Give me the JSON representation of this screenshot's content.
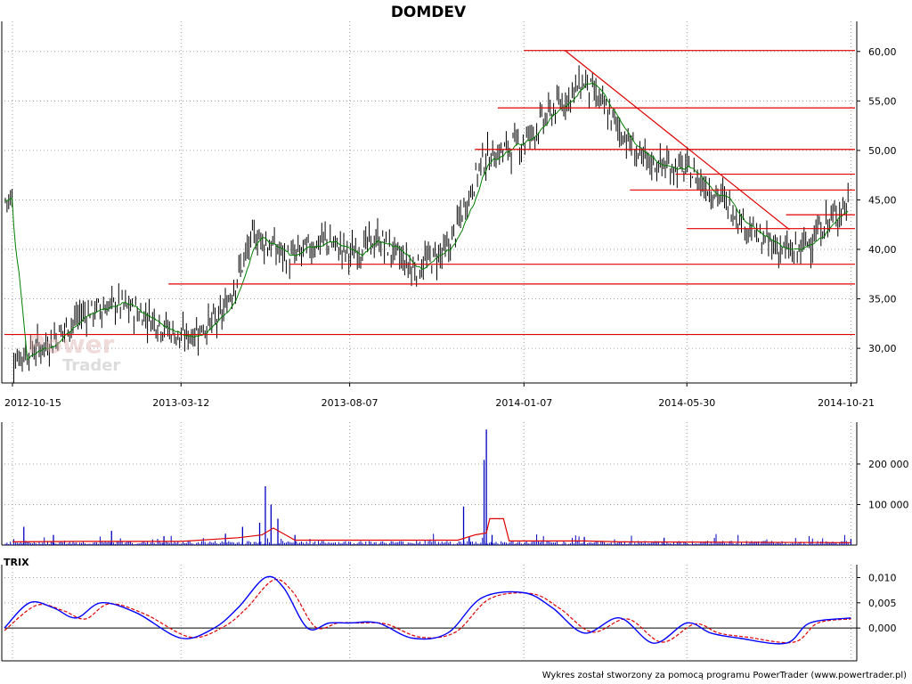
{
  "watermark": {
    "line1": "Power",
    "line2": "Trader"
  },
  "footer": "Wykres został stworzony za pomocą programu PowerTrader (www.powertrader.pl)",
  "colors": {
    "candle": "#000000",
    "sma": "#008000",
    "support": "#e00000",
    "volume": "#0000c0",
    "vol_avg": "#e00000",
    "trix": "#0000ff",
    "trix_signal": "#e00000",
    "grid": "#a0a0a0"
  },
  "chart_data": [
    {
      "type": "ohlc",
      "title": "DOMDEV",
      "x_labels": [
        "2012-10-15",
        "2013-03-12",
        "2013-08-07",
        "2014-01-07",
        "2014-05-30",
        "2014-10-21"
      ],
      "y_ticks": [
        "30,00",
        "35,00",
        "40,00",
        "45,00",
        "50,00",
        "55,00",
        "60,00"
      ],
      "ylim": [
        26.5,
        62.5
      ],
      "grid": true,
      "close_path": [
        [
          "2012-10-15",
          29.0
        ],
        [
          "2012-11-15",
          30.5
        ],
        [
          "2012-12-15",
          33.5
        ],
        [
          "2013-01-15",
          34.5
        ],
        [
          "2013-02-15",
          33.0
        ],
        [
          "2013-03-12",
          31.0
        ],
        [
          "2013-04-15",
          33.0
        ],
        [
          "2013-05-15",
          41.5
        ],
        [
          "2013-06-15",
          39.0
        ],
        [
          "2013-07-15",
          41.0
        ],
        [
          "2013-08-07",
          39.5
        ],
        [
          "2013-09-01",
          41.0
        ],
        [
          "2013-10-01",
          38.0
        ],
        [
          "2013-11-01",
          40.0
        ],
        [
          "2013-12-01",
          49.0
        ],
        [
          "2014-01-07",
          51.0
        ],
        [
          "2014-02-01",
          54.0
        ],
        [
          "2014-03-01",
          57.0
        ],
        [
          "2014-04-01",
          52.0
        ],
        [
          "2014-04-20",
          49.0
        ],
        [
          "2014-05-30",
          48.0
        ],
        [
          "2014-07-01",
          45.0
        ],
        [
          "2014-08-01",
          41.0
        ],
        [
          "2014-09-01",
          39.5
        ],
        [
          "2014-10-21",
          45.0
        ]
      ],
      "horizontal_lines": [
        {
          "level": 60.1,
          "from": "2014-01-07"
        },
        {
          "level": 54.3,
          "from": "2013-12-15"
        },
        {
          "level": 50.1,
          "from": "2013-11-25"
        },
        {
          "level": 47.6,
          "from": "2014-05-20"
        },
        {
          "level": 46.0,
          "from": "2014-04-10"
        },
        {
          "level": 43.5,
          "from": "2014-08-25"
        },
        {
          "level": 42.1,
          "from": "2014-05-30"
        },
        {
          "level": 38.5,
          "from": "2013-06-15"
        },
        {
          "level": 36.5,
          "from": "2013-03-01"
        },
        {
          "level": 31.4,
          "from": "2012-10-08"
        }
      ],
      "trend_line": [
        [
          "2014-02-12",
          60.1
        ],
        [
          "2014-08-28",
          42.0
        ]
      ]
    },
    {
      "type": "bar",
      "title": "",
      "y_ticks": [
        "100 000",
        "200 000"
      ],
      "ylim": [
        0,
        290000
      ],
      "grid": true,
      "spikes": [
        [
          "2012-10-25",
          45000
        ],
        [
          "2012-11-20",
          25000
        ],
        [
          "2013-01-10",
          35000
        ],
        [
          "2013-02-25",
          22000
        ],
        [
          "2013-04-20",
          28000
        ],
        [
          "2013-05-05",
          45000
        ],
        [
          "2013-05-20",
          55000
        ],
        [
          "2013-05-25",
          145000
        ],
        [
          "2013-05-30",
          100000
        ],
        [
          "2013-06-05",
          65000
        ],
        [
          "2013-06-20",
          25000
        ],
        [
          "2013-11-15",
          95000
        ],
        [
          "2013-11-20",
          20000
        ],
        [
          "2013-12-03",
          210000
        ],
        [
          "2013-12-05",
          285000
        ],
        [
          "2013-12-10",
          25000
        ],
        [
          "2014-03-01",
          20000
        ],
        [
          "2014-05-10",
          18000
        ],
        [
          "2014-10-21",
          15000
        ]
      ],
      "avg_path": [
        [
          "2012-10-15",
          8000
        ],
        [
          "2012-12-15",
          9000
        ],
        [
          "2013-03-12",
          9000
        ],
        [
          "2013-05-01",
          18000
        ],
        [
          "2013-05-22",
          25000
        ],
        [
          "2013-06-01",
          42000
        ],
        [
          "2013-06-20",
          12000
        ],
        [
          "2013-11-10",
          12000
        ],
        [
          "2013-11-25",
          25000
        ],
        [
          "2013-12-05",
          30000
        ],
        [
          "2013-12-08",
          65000
        ],
        [
          "2013-12-20",
          65000
        ],
        [
          "2013-12-25",
          10000
        ],
        [
          "2014-03-01",
          10000
        ],
        [
          "2014-04-01",
          8000
        ],
        [
          "2014-10-21",
          6000
        ]
      ]
    },
    {
      "type": "line",
      "title": "TRIX",
      "y_ticks": [
        "0,000",
        "0,005",
        "0,010"
      ],
      "ylim": [
        -0.0065,
        0.0115
      ],
      "grid": true,
      "series": [
        {
          "values": [
            [
              "2012-10-08",
              0.0
            ],
            [
              "2012-10-30",
              0.005
            ],
            [
              "2012-11-20",
              0.004
            ],
            [
              "2012-12-10",
              0.002
            ],
            [
              "2013-01-01",
              0.005
            ],
            [
              "2013-02-01",
              0.003
            ],
            [
              "2013-03-12",
              -0.002
            ],
            [
              "2013-04-10",
              0.0
            ],
            [
              "2013-05-01",
              0.004
            ],
            [
              "2013-05-25",
              0.01
            ],
            [
              "2013-06-10",
              0.008
            ],
            [
              "2013-07-01",
              0.0
            ],
            [
              "2013-07-20",
              0.001
            ],
            [
              "2013-08-07",
              0.001
            ],
            [
              "2013-09-01",
              0.001
            ],
            [
              "2013-10-01",
              -0.002
            ],
            [
              "2013-11-01",
              -0.001
            ],
            [
              "2013-12-01",
              0.006
            ],
            [
              "2014-01-07",
              0.007
            ],
            [
              "2014-02-01",
              0.004
            ],
            [
              "2014-03-01",
              -0.001
            ],
            [
              "2014-04-01",
              0.002
            ],
            [
              "2014-05-01",
              -0.003
            ],
            [
              "2014-05-30",
              0.001
            ],
            [
              "2014-06-20",
              -0.001
            ],
            [
              "2014-07-15",
              -0.002
            ],
            [
              "2014-08-25",
              -0.003
            ],
            [
              "2014-09-15",
              0.001
            ],
            [
              "2014-10-21",
              0.002
            ]
          ]
        },
        {
          "values": [
            [
              "2012-10-08",
              -0.0005
            ],
            [
              "2012-11-05",
              0.0045
            ],
            [
              "2012-11-28",
              0.0035
            ],
            [
              "2012-12-18",
              0.0018
            ],
            [
              "2013-01-08",
              0.0048
            ],
            [
              "2013-02-08",
              0.0028
            ],
            [
              "2013-03-20",
              -0.0018
            ],
            [
              "2013-04-18",
              0.0002
            ],
            [
              "2013-05-08",
              0.0038
            ],
            [
              "2013-06-01",
              0.0095
            ],
            [
              "2013-06-18",
              0.0072
            ],
            [
              "2013-07-08",
              0.0002
            ],
            [
              "2013-07-28",
              0.001
            ],
            [
              "2013-08-15",
              0.001
            ],
            [
              "2013-09-08",
              0.0008
            ],
            [
              "2013-10-08",
              -0.0018
            ],
            [
              "2013-11-08",
              -0.0008
            ],
            [
              "2013-12-08",
              0.0058
            ],
            [
              "2014-01-14",
              0.0068
            ],
            [
              "2014-02-08",
              0.0038
            ],
            [
              "2014-03-08",
              -0.0008
            ],
            [
              "2014-04-08",
              0.0018
            ],
            [
              "2014-05-08",
              -0.0028
            ],
            [
              "2014-06-06",
              0.0008
            ],
            [
              "2014-06-27",
              -0.001
            ],
            [
              "2014-07-22",
              -0.0018
            ],
            [
              "2014-09-01",
              -0.0028
            ],
            [
              "2014-09-22",
              0.001
            ],
            [
              "2014-10-21",
              0.0018
            ]
          ]
        }
      ]
    }
  ]
}
